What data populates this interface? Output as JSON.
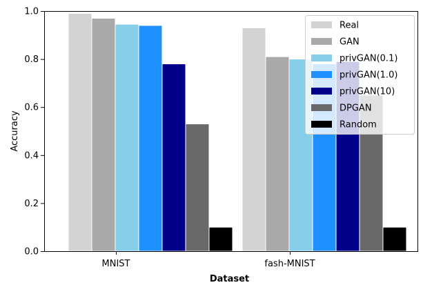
{
  "chart_data": {
    "type": "bar",
    "categories": [
      "MNIST",
      "fash-MNIST"
    ],
    "xlabel": "Dataset",
    "ylabel": "Accuracy",
    "ylim": [
      0,
      1.0
    ],
    "yticks": [
      "0.0",
      "0.2",
      "0.4",
      "0.6",
      "0.8",
      "1.0"
    ],
    "grid": false,
    "legend_position": "top-right",
    "series": [
      {
        "name": "Real",
        "color": "#d3d3d3",
        "values": [
          0.99,
          0.93
        ]
      },
      {
        "name": "GAN",
        "color": "#a9a9a9",
        "values": [
          0.97,
          0.81
        ]
      },
      {
        "name": "privGAN(0.1)",
        "color": "#87ceeb",
        "values": [
          0.945,
          0.8
        ]
      },
      {
        "name": "privGAN(1.0)",
        "color": "#1e90ff",
        "values": [
          0.94,
          0.78
        ]
      },
      {
        "name": "privGAN(10)",
        "color": "#00008b",
        "values": [
          0.78,
          0.79
        ]
      },
      {
        "name": "DPGAN",
        "color": "#696969",
        "values": [
          0.53,
          0.65
        ]
      },
      {
        "name": "Random",
        "color": "#000000",
        "values": [
          0.1,
          0.1
        ]
      }
    ]
  }
}
